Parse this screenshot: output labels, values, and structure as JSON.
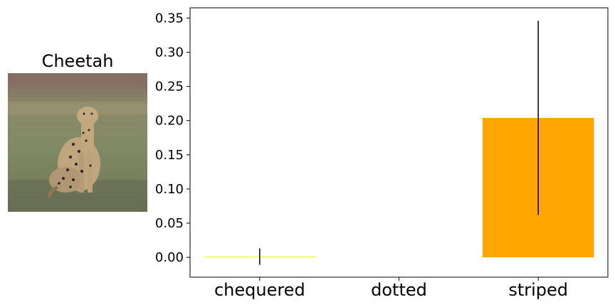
{
  "image_panel": {
    "title": "Cheetah",
    "image_subject": "cheetah-photo"
  },
  "chart_data": {
    "type": "bar",
    "categories": [
      "chequered",
      "dotted",
      "striped"
    ],
    "values": [
      0.001,
      0.0,
      0.204
    ],
    "error_low": [
      -0.011,
      0.0,
      0.062
    ],
    "error_high": [
      0.013,
      0.0,
      0.346
    ],
    "bar_colors": [
      "#ffff00",
      "#ffffff",
      "#ffa500"
    ],
    "ylim": [
      -0.029,
      0.365
    ],
    "yticks": [
      0.0,
      0.05,
      0.1,
      0.15,
      0.2,
      0.25,
      0.3,
      0.35
    ],
    "ytick_labels": [
      "0.00",
      "0.05",
      "0.10",
      "0.15",
      "0.20",
      "0.25",
      "0.30",
      "0.35"
    ],
    "title": "",
    "xlabel": "",
    "ylabel": "",
    "grid": false,
    "legend": "none"
  }
}
